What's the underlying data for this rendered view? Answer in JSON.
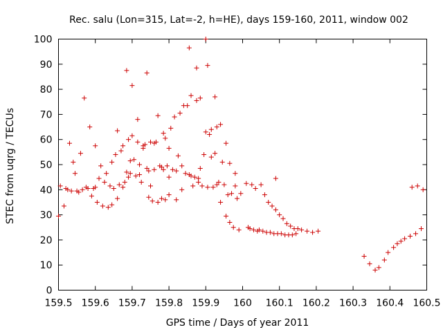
{
  "chart_data": {
    "type": "scatter",
    "title": "Rec. salu (Lon=315, Lat=-2, h=HE), days 159-160, 2011, window 002",
    "xlabel": "GPS time / Days of year 2011",
    "ylabel": "STEC from uqrg / TECUs",
    "xlim": [
      159.5,
      160.5
    ],
    "ylim": [
      0,
      100
    ],
    "xticks": [
      "159.5",
      "159.6",
      "159.7",
      "159.8",
      "159.9",
      "160",
      "160.1",
      "160.2",
      "160.3",
      "160.4",
      "160.5"
    ],
    "yticks": [
      "0",
      "10",
      "20",
      "30",
      "40",
      "50",
      "60",
      "70",
      "80",
      "90",
      "100"
    ],
    "grid": false,
    "marker": "plus",
    "color": "#cc0000",
    "points": [
      [
        159.5,
        29.5
      ],
      [
        159.505,
        41.5
      ],
      [
        159.515,
        33.5
      ],
      [
        159.52,
        40.5
      ],
      [
        159.525,
        40
      ],
      [
        159.53,
        58.5
      ],
      [
        159.535,
        39.5
      ],
      [
        159.54,
        51
      ],
      [
        159.545,
        46.5
      ],
      [
        159.55,
        39.5
      ],
      [
        159.555,
        39
      ],
      [
        159.56,
        54.5
      ],
      [
        159.565,
        40
      ],
      [
        159.57,
        76.5
      ],
      [
        159.575,
        41
      ],
      [
        159.58,
        40.5
      ],
      [
        159.585,
        65
      ],
      [
        159.59,
        37.5
      ],
      [
        159.595,
        40.5
      ],
      [
        159.6,
        57.5
      ],
      [
        159.6,
        41
      ],
      [
        159.605,
        35
      ],
      [
        159.61,
        44.5
      ],
      [
        159.615,
        49.5
      ],
      [
        159.62,
        33.5
      ],
      [
        159.625,
        43
      ],
      [
        159.63,
        46.5
      ],
      [
        159.635,
        33
      ],
      [
        159.64,
        41.5
      ],
      [
        159.645,
        51
      ],
      [
        159.645,
        34
      ],
      [
        159.65,
        40.5
      ],
      [
        159.655,
        54
      ],
      [
        159.66,
        36.5
      ],
      [
        159.66,
        63.5
      ],
      [
        159.665,
        42
      ],
      [
        159.67,
        55.5
      ],
      [
        159.675,
        57.5
      ],
      [
        159.675,
        41
      ],
      [
        159.68,
        43
      ],
      [
        159.685,
        47
      ],
      [
        159.685,
        87.5
      ],
      [
        159.69,
        60
      ],
      [
        159.69,
        45
      ],
      [
        159.695,
        51.5
      ],
      [
        159.695,
        46.5
      ],
      [
        159.7,
        81.5
      ],
      [
        159.7,
        61.5
      ],
      [
        159.705,
        52
      ],
      [
        159.71,
        45.5
      ],
      [
        159.715,
        68
      ],
      [
        159.715,
        59
      ],
      [
        159.72,
        50
      ],
      [
        159.72,
        46
      ],
      [
        159.725,
        43
      ],
      [
        159.73,
        56.5
      ],
      [
        159.73,
        57.5
      ],
      [
        159.735,
        58
      ],
      [
        159.74,
        48.5
      ],
      [
        159.74,
        86.5
      ],
      [
        159.745,
        37
      ],
      [
        159.745,
        47.5
      ],
      [
        159.75,
        59
      ],
      [
        159.75,
        41.5
      ],
      [
        159.755,
        35.5
      ],
      [
        159.76,
        48
      ],
      [
        159.76,
        58.5
      ],
      [
        159.765,
        59
      ],
      [
        159.77,
        69.5
      ],
      [
        159.77,
        35
      ],
      [
        159.775,
        49.5
      ],
      [
        159.78,
        49
      ],
      [
        159.78,
        36.5
      ],
      [
        159.785,
        62.5
      ],
      [
        159.785,
        48
      ],
      [
        159.79,
        60.5
      ],
      [
        159.79,
        36
      ],
      [
        159.795,
        49.5
      ],
      [
        159.8,
        45
      ],
      [
        159.8,
        56.5
      ],
      [
        159.8,
        38
      ],
      [
        159.805,
        64.5
      ],
      [
        159.81,
        48
      ],
      [
        159.815,
        69
      ],
      [
        159.82,
        47.5
      ],
      [
        159.82,
        36
      ],
      [
        159.825,
        53.5
      ],
      [
        159.83,
        70.5
      ],
      [
        159.835,
        49.5
      ],
      [
        159.835,
        40
      ],
      [
        159.84,
        73.5
      ],
      [
        159.845,
        46.5
      ],
      [
        159.85,
        73.5
      ],
      [
        159.855,
        46
      ],
      [
        159.855,
        96.5
      ],
      [
        159.86,
        45.5
      ],
      [
        159.86,
        77.5
      ],
      [
        159.865,
        41.5
      ],
      [
        159.87,
        45
      ],
      [
        159.875,
        75.5
      ],
      [
        159.875,
        88.5
      ],
      [
        159.88,
        44.5
      ],
      [
        159.88,
        43
      ],
      [
        159.885,
        48.5
      ],
      [
        159.885,
        76.5
      ],
      [
        159.89,
        41.5
      ],
      [
        159.895,
        54
      ],
      [
        159.9,
        63
      ],
      [
        159.9,
        100
      ],
      [
        159.905,
        41
      ],
      [
        159.905,
        89.5
      ],
      [
        159.91,
        62
      ],
      [
        159.915,
        53
      ],
      [
        159.915,
        64
      ],
      [
        159.92,
        41
      ],
      [
        159.925,
        77
      ],
      [
        159.925,
        54.5
      ],
      [
        159.93,
        42
      ],
      [
        159.93,
        65
      ],
      [
        159.935,
        43
      ],
      [
        159.94,
        66
      ],
      [
        159.94,
        35
      ],
      [
        159.945,
        51
      ],
      [
        159.95,
        42
      ],
      [
        159.955,
        58.5
      ],
      [
        159.955,
        29.5
      ],
      [
        159.96,
        38
      ],
      [
        159.965,
        50.5
      ],
      [
        159.965,
        27
      ],
      [
        159.97,
        38.5
      ],
      [
        159.975,
        25
      ],
      [
        159.98,
        46.5
      ],
      [
        159.98,
        41.5
      ],
      [
        159.985,
        36.5
      ],
      [
        159.99,
        24
      ],
      [
        159.995,
        38.5
      ],
      [
        160.01,
        42.5
      ],
      [
        160.015,
        25
      ],
      [
        160.02,
        24.5
      ],
      [
        160.025,
        42
      ],
      [
        160.03,
        24
      ],
      [
        160.035,
        40.5
      ],
      [
        160.04,
        23.5
      ],
      [
        160.045,
        24
      ],
      [
        160.05,
        42
      ],
      [
        160.055,
        23.5
      ],
      [
        160.06,
        38
      ],
      [
        160.065,
        23
      ],
      [
        160.07,
        35
      ],
      [
        160.075,
        23
      ],
      [
        160.08,
        33.5
      ],
      [
        160.085,
        22.5
      ],
      [
        160.09,
        44.5
      ],
      [
        160.09,
        32
      ],
      [
        160.095,
        22.5
      ],
      [
        160.1,
        30
      ],
      [
        160.105,
        22.5
      ],
      [
        160.11,
        28.5
      ],
      [
        160.115,
        22
      ],
      [
        160.12,
        26.5
      ],
      [
        160.125,
        22
      ],
      [
        160.13,
        25.5
      ],
      [
        160.135,
        22
      ],
      [
        160.14,
        24.5
      ],
      [
        160.145,
        22.5
      ],
      [
        160.15,
        24.5
      ],
      [
        160.16,
        24
      ],
      [
        160.175,
        23.5
      ],
      [
        160.19,
        23
      ],
      [
        160.205,
        23.5
      ],
      [
        160.33,
        13.5
      ],
      [
        160.345,
        10.5
      ],
      [
        160.36,
        8
      ],
      [
        160.37,
        9
      ],
      [
        160.385,
        12
      ],
      [
        160.395,
        15
      ],
      [
        160.41,
        17
      ],
      [
        160.42,
        18.5
      ],
      [
        160.43,
        19.5
      ],
      [
        160.44,
        20.5
      ],
      [
        160.455,
        21.5
      ],
      [
        160.46,
        41
      ],
      [
        160.47,
        22.5
      ],
      [
        160.475,
        41.5
      ],
      [
        160.485,
        24.5
      ],
      [
        160.49,
        40
      ]
    ]
  }
}
